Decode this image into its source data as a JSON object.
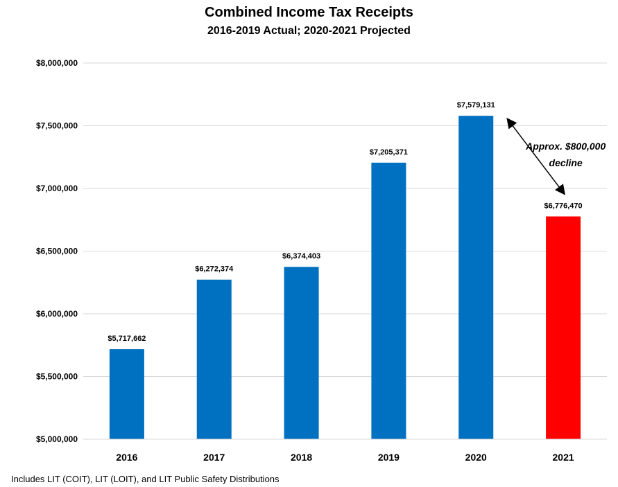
{
  "chart_data": {
    "type": "bar",
    "title": "Combined Income Tax Receipts",
    "subtitle": "2016-2019 Actual; 2020-2021 Projected",
    "categories": [
      "2016",
      "2017",
      "2018",
      "2019",
      "2020",
      "2021"
    ],
    "values": [
      5717662,
      6272374,
      6374403,
      7205371,
      7579131,
      6776470
    ],
    "data_labels": [
      "$5,717,662",
      "$6,272,374",
      "$6,374,403",
      "$7,205,371",
      "$7,579,131",
      "$6,776,470"
    ],
    "bar_colors": [
      "#0070C0",
      "#0070C0",
      "#0070C0",
      "#0070C0",
      "#0070C0",
      "#FF0000"
    ],
    "ylim": [
      5000000,
      8000000
    ],
    "yticks": [
      5000000,
      5500000,
      6000000,
      6500000,
      7000000,
      7500000,
      8000000
    ],
    "ytick_labels": [
      "$5,000,000",
      "$5,500,000",
      "$6,000,000",
      "$6,500,000",
      "$7,000,000",
      "$7,500,000",
      "$8,000,000"
    ],
    "xlabel": "",
    "ylabel": "",
    "grid": true,
    "annotation": {
      "text_line1": "Approx. $800,000",
      "text_line2": "decline",
      "from_category": "2020",
      "to_category": "2021"
    }
  },
  "footnote": "Includes LIT (COIT), LIT (LOIT), and LIT Public Safety Distributions"
}
